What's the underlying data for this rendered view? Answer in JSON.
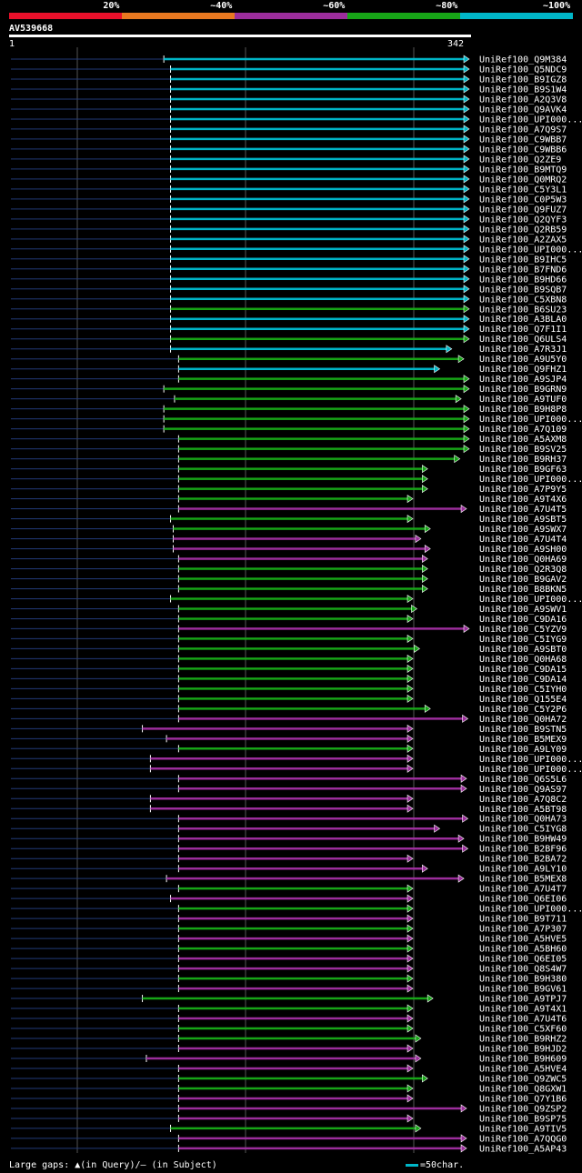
{
  "legend": [
    {
      "label": "20%",
      "color": "#e8102a"
    },
    {
      "label": "~40%",
      "color": "#e87820"
    },
    {
      "label": "~60%",
      "color": "#9b2d9b"
    },
    {
      "label": "~80%",
      "color": "#17a517"
    },
    {
      "label": "~100%",
      "color": "#00b6c8"
    }
  ],
  "query": {
    "id": "AV539668",
    "start": "1",
    "end": "342"
  },
  "footer": {
    "gaps_text": "Large gaps: ▲(in Query)/— (in Subject)",
    "scale_text": "=50char."
  },
  "chart_data": {
    "type": "alignment-overview",
    "title": "AV539668",
    "query_length": 342,
    "hits": [
      {
        "name": "UniRef100_Q9M384",
        "start": 115,
        "end": 342,
        "identity": "100"
      },
      {
        "name": "UniRef100_Q5NDC9",
        "start": 120,
        "end": 342,
        "identity": "100"
      },
      {
        "name": "UniRef100_B9IGZ8",
        "start": 120,
        "end": 342,
        "identity": "100"
      },
      {
        "name": "UniRef100_B9S1W4",
        "start": 120,
        "end": 342,
        "identity": "100"
      },
      {
        "name": "UniRef100_A2Q3V8",
        "start": 120,
        "end": 342,
        "identity": "100"
      },
      {
        "name": "UniRef100_Q9AVK4",
        "start": 120,
        "end": 342,
        "identity": "100"
      },
      {
        "name": "UniRef100_UPI000...",
        "start": 120,
        "end": 342,
        "identity": "100"
      },
      {
        "name": "UniRef100_A7Q9S7",
        "start": 120,
        "end": 342,
        "identity": "100"
      },
      {
        "name": "UniRef100_C9WBB7",
        "start": 120,
        "end": 342,
        "identity": "100"
      },
      {
        "name": "UniRef100_C9WBB6",
        "start": 120,
        "end": 342,
        "identity": "100"
      },
      {
        "name": "UniRef100_Q2ZE9",
        "start": 120,
        "end": 342,
        "identity": "100"
      },
      {
        "name": "UniRef100_B9MTQ9",
        "start": 120,
        "end": 342,
        "identity": "100"
      },
      {
        "name": "UniRef100_Q0MRQ2",
        "start": 120,
        "end": 342,
        "identity": "100"
      },
      {
        "name": "UniRef100_C5Y3L1",
        "start": 120,
        "end": 342,
        "identity": "100"
      },
      {
        "name": "UniRef100_C0P5W3",
        "start": 120,
        "end": 342,
        "identity": "100"
      },
      {
        "name": "UniRef100_Q9FUZ7",
        "start": 120,
        "end": 342,
        "identity": "100"
      },
      {
        "name": "UniRef100_Q2QYF3",
        "start": 120,
        "end": 342,
        "identity": "100"
      },
      {
        "name": "UniRef100_Q2RB59",
        "start": 120,
        "end": 342,
        "identity": "100"
      },
      {
        "name": "UniRef100_A2ZAX5",
        "start": 120,
        "end": 342,
        "identity": "100"
      },
      {
        "name": "UniRef100_UPI000...",
        "start": 120,
        "end": 342,
        "identity": "100"
      },
      {
        "name": "UniRef100_B9IHC5",
        "start": 120,
        "end": 342,
        "identity": "100"
      },
      {
        "name": "UniRef100_B7FND6",
        "start": 120,
        "end": 342,
        "identity": "100"
      },
      {
        "name": "UniRef100_B9HD66",
        "start": 120,
        "end": 342,
        "identity": "100"
      },
      {
        "name": "UniRef100_B9SQB7",
        "start": 120,
        "end": 342,
        "identity": "100"
      },
      {
        "name": "UniRef100_C5XBN8",
        "start": 120,
        "end": 342,
        "identity": "100"
      },
      {
        "name": "UniRef100_B6SU23",
        "start": 120,
        "end": 342,
        "identity": "80"
      },
      {
        "name": "UniRef100_A3BLA0",
        "start": 120,
        "end": 342,
        "identity": "100"
      },
      {
        "name": "UniRef100_Q7F1I1",
        "start": 120,
        "end": 342,
        "identity": "100"
      },
      {
        "name": "UniRef100_Q6ULS4",
        "start": 120,
        "end": 342,
        "identity": "80"
      },
      {
        "name": "UniRef100_A7R3J1",
        "start": 120,
        "end": 329,
        "identity": "100"
      },
      {
        "name": "UniRef100_A9U5Y0",
        "start": 126,
        "end": 338,
        "identity": "80"
      },
      {
        "name": "UniRef100_Q9FHZ1",
        "start": 126,
        "end": 320,
        "identity": "100"
      },
      {
        "name": "UniRef100_A9SJP4",
        "start": 126,
        "end": 342,
        "identity": "80"
      },
      {
        "name": "UniRef100_B9GRN9",
        "start": 115,
        "end": 342,
        "identity": "80"
      },
      {
        "name": "UniRef100_A9TUF0",
        "start": 123,
        "end": 336,
        "identity": "80"
      },
      {
        "name": "UniRef100_B9H8P8",
        "start": 115,
        "end": 342,
        "identity": "80"
      },
      {
        "name": "UniRef100_UPI000...",
        "start": 115,
        "end": 342,
        "identity": "80"
      },
      {
        "name": "UniRef100_A7Q109",
        "start": 115,
        "end": 342,
        "identity": "80"
      },
      {
        "name": "UniRef100_A5AXM8",
        "start": 126,
        "end": 342,
        "identity": "80"
      },
      {
        "name": "UniRef100_B9SV25",
        "start": 126,
        "end": 342,
        "identity": "80"
      },
      {
        "name": "UniRef100_B9RH37",
        "start": 126,
        "end": 335,
        "identity": "80"
      },
      {
        "name": "UniRef100_B9GF63",
        "start": 126,
        "end": 311,
        "identity": "80"
      },
      {
        "name": "UniRef100_UPI000...",
        "start": 126,
        "end": 311,
        "identity": "80"
      },
      {
        "name": "UniRef100_A7P9Y5",
        "start": 126,
        "end": 311,
        "identity": "80"
      },
      {
        "name": "UniRef100_A9T4X6",
        "start": 126,
        "end": 300,
        "identity": "80"
      },
      {
        "name": "UniRef100_A7U4T5",
        "start": 126,
        "end": 340,
        "identity": "60"
      },
      {
        "name": "UniRef100_A9SBT5",
        "start": 120,
        "end": 300,
        "identity": "80"
      },
      {
        "name": "UniRef100_A9SWX7",
        "start": 122,
        "end": 313,
        "identity": "80"
      },
      {
        "name": "UniRef100_A7U4T4",
        "start": 122,
        "end": 306,
        "identity": "60"
      },
      {
        "name": "UniRef100_A9SH00",
        "start": 122,
        "end": 313,
        "identity": "60"
      },
      {
        "name": "UniRef100_Q0HA69",
        "start": 126,
        "end": 311,
        "identity": "60"
      },
      {
        "name": "UniRef100_Q2R3Q8",
        "start": 126,
        "end": 311,
        "identity": "80"
      },
      {
        "name": "UniRef100_B9GAV2",
        "start": 126,
        "end": 311,
        "identity": "80"
      },
      {
        "name": "UniRef100_B8BKN5",
        "start": 126,
        "end": 311,
        "identity": "80"
      },
      {
        "name": "UniRef100_UPI000...",
        "start": 120,
        "end": 300,
        "identity": "80"
      },
      {
        "name": "UniRef100_A9SWV1",
        "start": 126,
        "end": 303,
        "identity": "80"
      },
      {
        "name": "UniRef100_C9DA16",
        "start": 126,
        "end": 300,
        "identity": "80"
      },
      {
        "name": "UniRef100_C5YZV9",
        "start": 126,
        "end": 342,
        "identity": "60"
      },
      {
        "name": "UniRef100_C5IYG9",
        "start": 126,
        "end": 300,
        "identity": "80"
      },
      {
        "name": "UniRef100_A9SBT0",
        "start": 126,
        "end": 305,
        "identity": "80"
      },
      {
        "name": "UniRef100_Q0HA68",
        "start": 126,
        "end": 300,
        "identity": "80"
      },
      {
        "name": "UniRef100_C9DA15",
        "start": 126,
        "end": 300,
        "identity": "80"
      },
      {
        "name": "UniRef100_C9DA14",
        "start": 126,
        "end": 300,
        "identity": "80"
      },
      {
        "name": "UniRef100_C5IYH0",
        "start": 126,
        "end": 300,
        "identity": "80"
      },
      {
        "name": "UniRef100_Q155E4",
        "start": 126,
        "end": 300,
        "identity": "80"
      },
      {
        "name": "UniRef100_C5Y2P6",
        "start": 126,
        "end": 313,
        "identity": "80"
      },
      {
        "name": "UniRef100_Q0HA72",
        "start": 126,
        "end": 341,
        "identity": "60"
      },
      {
        "name": "UniRef100_B9STN5",
        "start": 99,
        "end": 300,
        "identity": "60"
      },
      {
        "name": "UniRef100_B5MEX9",
        "start": 117,
        "end": 300,
        "identity": "60"
      },
      {
        "name": "UniRef100_A9LY09",
        "start": 126,
        "end": 300,
        "identity": "80"
      },
      {
        "name": "UniRef100_UPI000...",
        "start": 105,
        "end": 300,
        "identity": "60"
      },
      {
        "name": "UniRef100_UPI000...",
        "start": 105,
        "end": 300,
        "identity": "60"
      },
      {
        "name": "UniRef100_Q6S5L6",
        "start": 126,
        "end": 340,
        "identity": "60"
      },
      {
        "name": "UniRef100_Q9AS97",
        "start": 126,
        "end": 340,
        "identity": "60"
      },
      {
        "name": "UniRef100_A7Q8C2",
        "start": 105,
        "end": 300,
        "identity": "60"
      },
      {
        "name": "UniRef100_A5BT98",
        "start": 105,
        "end": 300,
        "identity": "60"
      },
      {
        "name": "UniRef100_Q0HA73",
        "start": 126,
        "end": 341,
        "identity": "60"
      },
      {
        "name": "UniRef100_C5IYG8",
        "start": 126,
        "end": 320,
        "identity": "60"
      },
      {
        "name": "UniRef100_B9HW49",
        "start": 126,
        "end": 338,
        "identity": "60"
      },
      {
        "name": "UniRef100_B2BF96",
        "start": 126,
        "end": 341,
        "identity": "60"
      },
      {
        "name": "UniRef100_B2BA72",
        "start": 126,
        "end": 300,
        "identity": "60"
      },
      {
        "name": "UniRef100_A9LY10",
        "start": 126,
        "end": 311,
        "identity": "60"
      },
      {
        "name": "UniRef100_B5MEX8",
        "start": 117,
        "end": 338,
        "identity": "60"
      },
      {
        "name": "UniRef100_A7U4T7",
        "start": 126,
        "end": 300,
        "identity": "80"
      },
      {
        "name": "UniRef100_Q6EI06",
        "start": 120,
        "end": 300,
        "identity": "60"
      },
      {
        "name": "UniRef100_UPI000...",
        "start": 126,
        "end": 300,
        "identity": "80"
      },
      {
        "name": "UniRef100_B9T711",
        "start": 126,
        "end": 300,
        "identity": "60"
      },
      {
        "name": "UniRef100_A7P307",
        "start": 126,
        "end": 300,
        "identity": "80"
      },
      {
        "name": "UniRef100_A5HVE5",
        "start": 126,
        "end": 300,
        "identity": "60"
      },
      {
        "name": "UniRef100_A5BH60",
        "start": 126,
        "end": 300,
        "identity": "80"
      },
      {
        "name": "UniRef100_Q6EI05",
        "start": 126,
        "end": 300,
        "identity": "60"
      },
      {
        "name": "UniRef100_Q8S4W7",
        "start": 126,
        "end": 300,
        "identity": "60"
      },
      {
        "name": "UniRef100_B9H380",
        "start": 126,
        "end": 300,
        "identity": "80"
      },
      {
        "name": "UniRef100_B9GV61",
        "start": 126,
        "end": 300,
        "identity": "60"
      },
      {
        "name": "UniRef100_A9TPJ7",
        "start": 99,
        "end": 315,
        "identity": "80"
      },
      {
        "name": "UniRef100_A9T4X1",
        "start": 126,
        "end": 300,
        "identity": "80"
      },
      {
        "name": "UniRef100_A7U4T6",
        "start": 126,
        "end": 300,
        "identity": "60"
      },
      {
        "name": "UniRef100_C5XF60",
        "start": 126,
        "end": 300,
        "identity": "80"
      },
      {
        "name": "UniRef100_B9RHZ2",
        "start": 126,
        "end": 306,
        "identity": "80"
      },
      {
        "name": "UniRef100_B9HJD2",
        "start": 126,
        "end": 300,
        "identity": "60"
      },
      {
        "name": "UniRef100_B9H609",
        "start": 102,
        "end": 306,
        "identity": "60"
      },
      {
        "name": "UniRef100_A5HVE4",
        "start": 126,
        "end": 300,
        "identity": "60"
      },
      {
        "name": "UniRef100_Q9ZWC5",
        "start": 126,
        "end": 311,
        "identity": "80"
      },
      {
        "name": "UniRef100_Q8GXW1",
        "start": 126,
        "end": 300,
        "identity": "80"
      },
      {
        "name": "UniRef100_Q7Y1B6",
        "start": 126,
        "end": 300,
        "identity": "60"
      },
      {
        "name": "UniRef100_Q9ZSP2",
        "start": 126,
        "end": 340,
        "identity": "60"
      },
      {
        "name": "UniRef100_B9SP75",
        "start": 126,
        "end": 300,
        "identity": "60"
      },
      {
        "name": "UniRef100_A9TIV5",
        "start": 120,
        "end": 306,
        "identity": "80"
      },
      {
        "name": "UniRef100_A7QQG0",
        "start": 126,
        "end": 340,
        "identity": "60"
      },
      {
        "name": "UniRef100_A5AP43",
        "start": 126,
        "end": 340,
        "identity": "60"
      }
    ]
  }
}
